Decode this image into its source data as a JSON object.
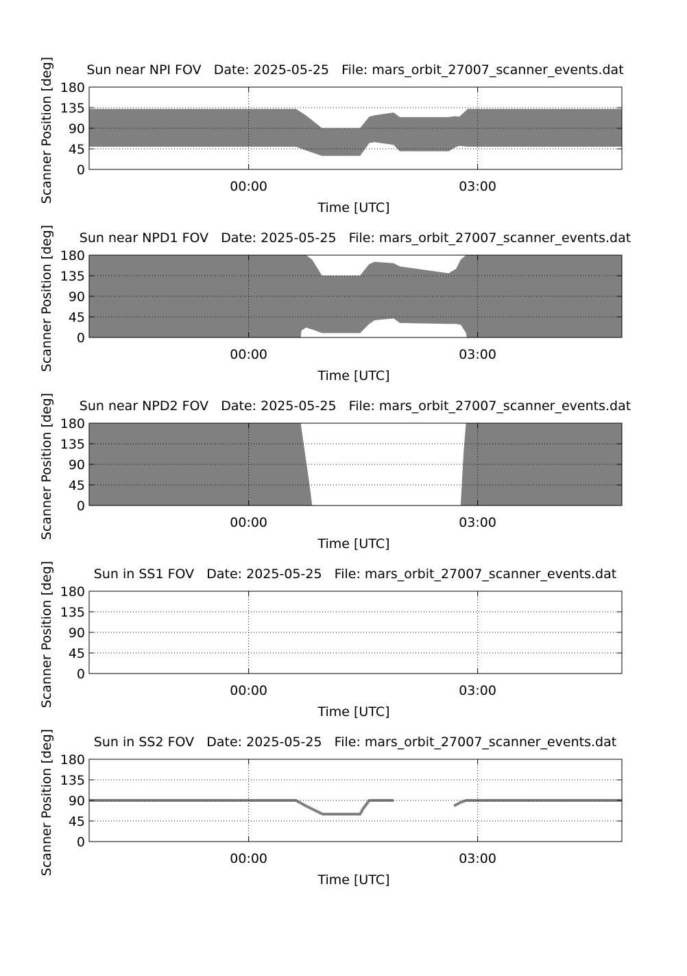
{
  "chart_data": [
    {
      "type": "band",
      "title": "Sun near NPI FOV   Date: 2025-05-25   File: mars_orbit_27007_scanner_events.dat",
      "xlabel": "Time [UTC]",
      "ylabel": "Scanner Position [deg]",
      "color": "#808080",
      "grid": true,
      "xlim": [
        -2.09,
        4.89
      ],
      "xticks": [
        {
          "value": 0,
          "label": "00:00"
        },
        {
          "value": 3,
          "label": "03:00"
        }
      ],
      "ylim": [
        0,
        180
      ],
      "yticks": [
        0,
        45,
        90,
        135,
        180
      ],
      "x": [
        -2.09,
        0.62,
        0.75,
        0.96,
        1.46,
        1.58,
        1.65,
        1.9,
        1.98,
        2.62,
        2.7,
        2.76,
        2.87,
        4.89
      ],
      "upper": [
        132,
        132,
        118,
        90,
        90,
        115,
        118,
        124,
        114,
        114,
        116,
        115,
        132,
        132
      ],
      "lower": [
        50,
        50,
        42,
        30,
        30,
        58,
        60,
        54,
        40,
        40,
        48,
        52,
        50,
        50
      ]
    },
    {
      "type": "band",
      "title": "Sun near NPD1 FOV   Date: 2025-05-25   File: mars_orbit_27007_scanner_events.dat",
      "xlabel": "Time [UTC]",
      "ylabel": "Scanner Position [deg]",
      "color": "#808080",
      "grid": true,
      "xlim": [
        -2.09,
        4.89
      ],
      "xticks": [
        {
          "value": 0,
          "label": "00:00"
        },
        {
          "value": 3,
          "label": "03:00"
        }
      ],
      "ylim": [
        0,
        180
      ],
      "yticks": [
        0,
        45,
        90,
        135,
        180
      ],
      "x": [
        -2.09,
        0.68,
        0.69,
        0.75,
        0.83,
        0.96,
        1.46,
        1.58,
        1.65,
        1.9,
        1.98,
        2.62,
        2.72,
        2.78,
        2.85,
        2.86,
        4.89
      ],
      "upper": [
        180,
        180,
        180,
        180,
        170,
        135,
        135,
        160,
        165,
        162,
        155,
        140,
        150,
        170,
        180,
        180,
        180
      ],
      "lower": [
        0,
        0,
        15,
        22,
        18,
        10,
        10,
        30,
        38,
        42,
        32,
        30,
        30,
        28,
        10,
        0,
        0
      ]
    },
    {
      "type": "band",
      "title": "Sun near NPD2 FOV   Date: 2025-05-25   File: mars_orbit_27007_scanner_events.dat",
      "xlabel": "Time [UTC]",
      "ylabel": "Scanner Position [deg]",
      "color": "#808080",
      "grid": true,
      "xlim": [
        -2.09,
        4.89
      ],
      "xticks": [
        {
          "value": 0,
          "label": "00:00"
        },
        {
          "value": 3,
          "label": "03:00"
        }
      ],
      "ylim": [
        0,
        180
      ],
      "yticks": [
        0,
        45,
        90,
        135,
        180
      ],
      "x": [
        -2.09,
        0.68,
        0.8,
        0.83,
        1.8,
        2.78,
        2.82,
        2.85,
        4.89
      ],
      "upper": [
        180,
        180,
        40,
        0,
        null,
        0,
        120,
        180,
        180
      ],
      "lower": [
        0,
        0,
        0,
        0,
        null,
        0,
        0,
        0,
        0
      ]
    },
    {
      "type": "band",
      "title": "Sun in SS1 FOV   Date: 2025-05-25   File: mars_orbit_27007_scanner_events.dat",
      "xlabel": "Time [UTC]",
      "ylabel": "Scanner Position [deg]",
      "color": "#808080",
      "grid": true,
      "xlim": [
        -2.09,
        4.89
      ],
      "xticks": [
        {
          "value": 0,
          "label": "00:00"
        },
        {
          "value": 3,
          "label": "03:00"
        }
      ],
      "ylim": [
        0,
        180
      ],
      "yticks": [
        0,
        45,
        90,
        135,
        180
      ],
      "x": [],
      "upper": [],
      "lower": []
    },
    {
      "type": "line",
      "title": "Sun in SS2 FOV   Date: 2025-05-25   File: mars_orbit_27007_scanner_events.dat",
      "xlabel": "Time [UTC]",
      "ylabel": "Scanner Position [deg]",
      "color": "#808080",
      "grid": true,
      "xlim": [
        -2.09,
        4.89
      ],
      "xticks": [
        {
          "value": 0,
          "label": "00:00"
        },
        {
          "value": 3,
          "label": "03:00"
        }
      ],
      "ylim": [
        0,
        180
      ],
      "yticks": [
        0,
        45,
        90,
        135,
        180
      ],
      "x": [
        -2.09,
        0.62,
        0.75,
        0.97,
        1.46,
        1.5,
        1.58,
        1.9,
        2.3,
        2.69,
        2.78,
        2.85,
        4.89
      ],
      "y": [
        90,
        90,
        78,
        60,
        60,
        72,
        90,
        90,
        null,
        78,
        86,
        90,
        90
      ]
    }
  ]
}
